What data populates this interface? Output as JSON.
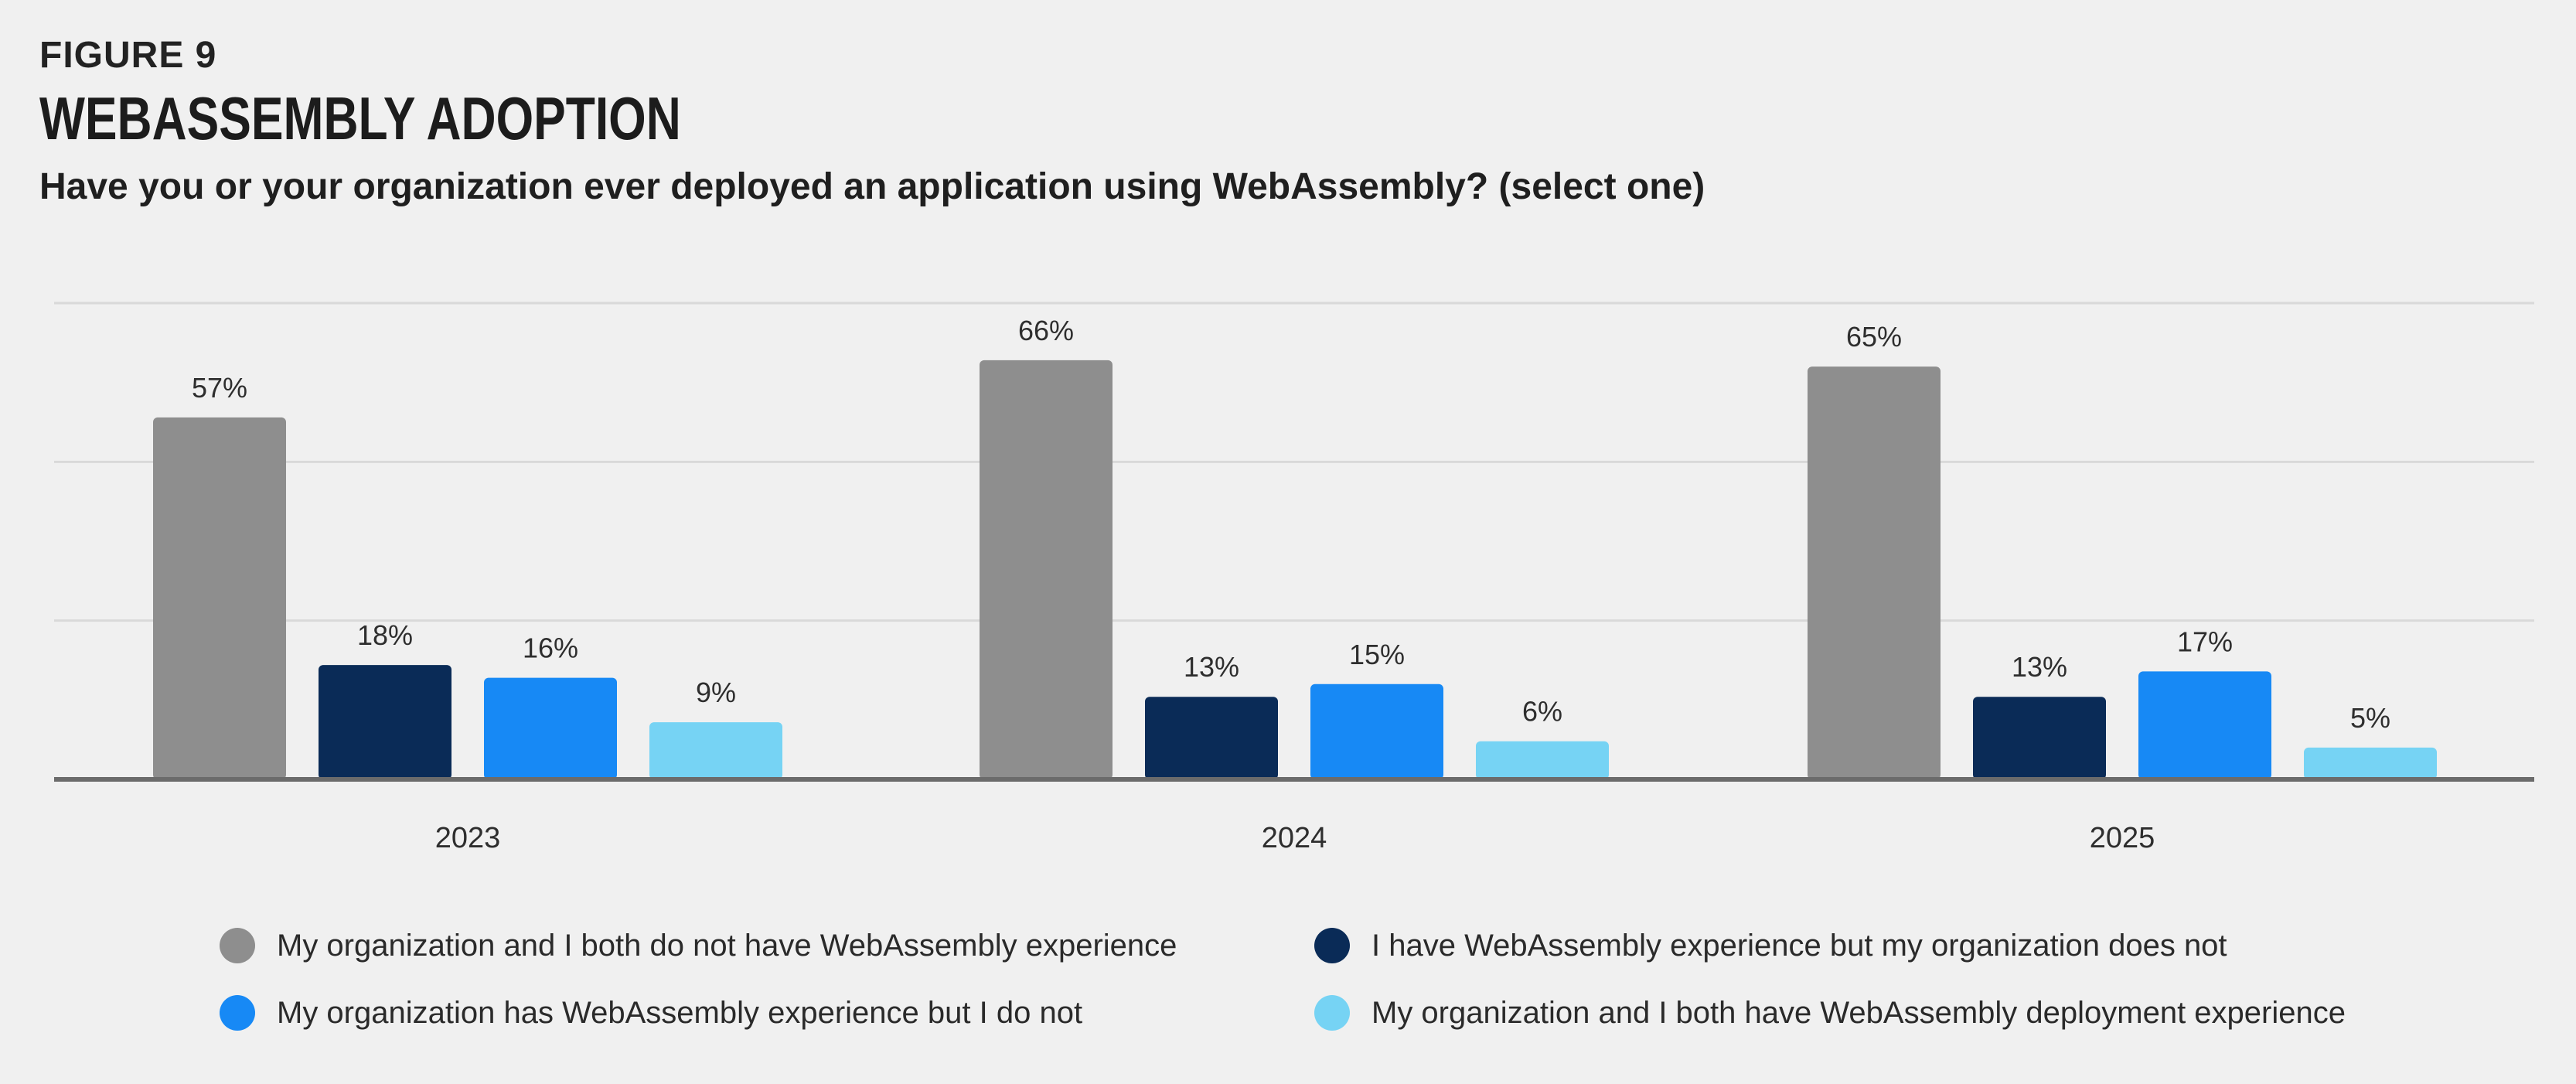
{
  "header": {
    "figure_label": "FIGURE 9",
    "title": "WEBASSEMBLY ADOPTION",
    "subtitle": "Have you or your organization ever deployed an application using WebAssembly? (select one)"
  },
  "colors": {
    "background": "#f0f0f0",
    "gridline": "#d9d9d9",
    "axis": "#6b6b6b",
    "series_1": "#8e8e8e",
    "series_2": "#0a2b57",
    "series_3": "#1789f5",
    "series_4": "#76d3f4"
  },
  "chart_data": {
    "type": "bar",
    "title": "WEBASSEMBLY ADOPTION",
    "subtitle": "Have you or your organization ever deployed an application using WebAssembly? (select one)",
    "xlabel": "",
    "ylabel": "",
    "ylim": [
      0,
      75
    ],
    "gridlines": [
      0,
      25,
      50,
      75
    ],
    "grid": true,
    "value_suffix": "%",
    "legend_position": "bottom",
    "categories": [
      "2023",
      "2024",
      "2025"
    ],
    "series": [
      {
        "name": "My organization and I both do not have WebAssembly experience",
        "color": "#8e8e8e",
        "values": [
          57,
          66,
          65
        ]
      },
      {
        "name": "I have WebAssembly experience but my organization does not",
        "color": "#0a2b57",
        "values": [
          18,
          13,
          13
        ]
      },
      {
        "name": "My organization has WebAssembly experience but I do not",
        "color": "#1789f5",
        "values": [
          16,
          15,
          17
        ]
      },
      {
        "name": "My organization and I both have WebAssembly deployment experience",
        "color": "#76d3f4",
        "values": [
          9,
          6,
          5
        ]
      }
    ]
  }
}
